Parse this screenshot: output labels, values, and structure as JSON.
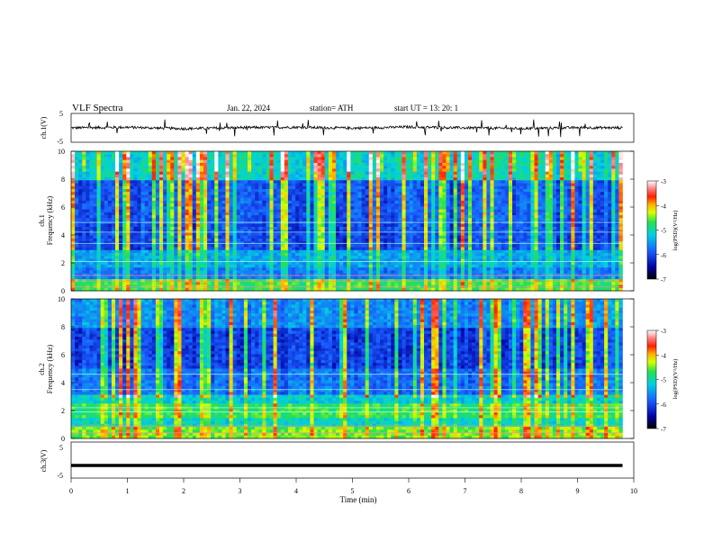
{
  "header": {
    "title": "VLF  Spectra",
    "date": "Jan. 22, 2024",
    "station": "station= ATH",
    "start": "start  UT  =    13: 20: 1"
  },
  "chart_data": [
    {
      "type": "line",
      "name": "ch1-waveform",
      "ylabel": "ch.1(V)",
      "ylim": [
        -5,
        5
      ],
      "yticks": [
        "5",
        "-5"
      ],
      "x": [
        0,
        1,
        2,
        3,
        4,
        5,
        6,
        7,
        8,
        9,
        9.8
      ],
      "y": [
        0,
        0.2,
        -0.3,
        0.1,
        0.2,
        -0.1,
        0.3,
        0.0,
        -0.2,
        0.1,
        0.0
      ]
    },
    {
      "type": "heatmap",
      "name": "ch1-spectrogram",
      "ylabel": "Frequency  (kHz)",
      "ylabel2": "ch.1",
      "xlim": [
        0,
        10
      ],
      "ylim": [
        0,
        10
      ],
      "yticks": [
        "0",
        "2",
        "4",
        "6",
        "8",
        "10"
      ],
      "colorbar": {
        "label": "log(PSD)(V²/Hz)",
        "ticks": [
          "-3",
          "-4",
          "-5",
          "-6",
          "-7"
        ],
        "range": [
          -7,
          -3
        ]
      }
    },
    {
      "type": "heatmap",
      "name": "ch2-spectrogram",
      "ylabel": "Frequency  (kHz)",
      "ylabel2": "ch.2",
      "xlim": [
        0,
        10
      ],
      "ylim": [
        0,
        10
      ],
      "yticks": [
        "0",
        "2",
        "4",
        "6",
        "8",
        "10"
      ],
      "colorbar": {
        "label": "log(PSD)(V²/Hz)",
        "ticks": [
          "-3",
          "-4",
          "-5",
          "-6",
          "-7"
        ],
        "range": [
          -7,
          -3
        ]
      }
    },
    {
      "type": "line",
      "name": "ch3-waveform",
      "ylabel": "ch.3(V)",
      "ylim": [
        -5,
        5
      ],
      "yticks": [
        "5",
        "-5"
      ],
      "xlabel": "Time  (min)",
      "xticks": [
        "0",
        "1",
        "2",
        "3",
        "4",
        "5",
        "6",
        "7",
        "8",
        "9",
        "10"
      ],
      "x": [
        0,
        9.8
      ],
      "y": [
        -1.5,
        -1.5
      ]
    }
  ]
}
